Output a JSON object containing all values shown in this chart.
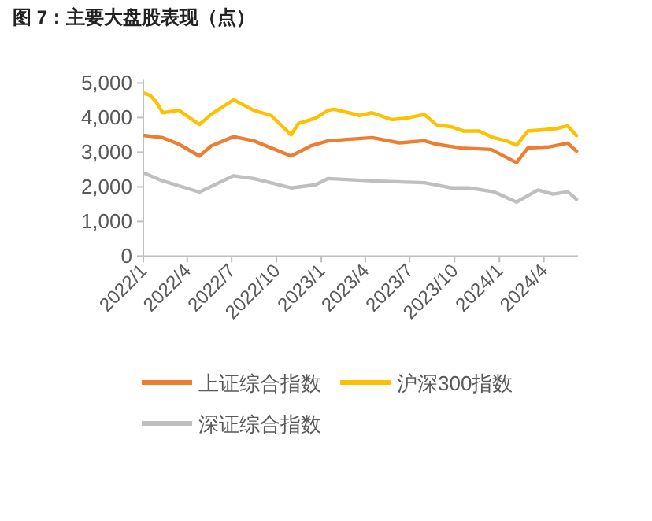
{
  "chart_data": {
    "type": "line",
    "title": "图 7：主要大盘股表现（点）",
    "xlim": [
      "2022-01-01",
      "2024-06-10"
    ],
    "xticks": [
      {
        "value": "2022-01-01",
        "label": "2022/1"
      },
      {
        "value": "2022-04-01",
        "label": "2022/4"
      },
      {
        "value": "2022-07-01",
        "label": "2022/7"
      },
      {
        "value": "2022-10-01",
        "label": "2022/10"
      },
      {
        "value": "2023-01-01",
        "label": "2023/1"
      },
      {
        "value": "2023-04-01",
        "label": "2023/4"
      },
      {
        "value": "2023-07-01",
        "label": "2023/7"
      },
      {
        "value": "2023-10-01",
        "label": "2023/10"
      },
      {
        "value": "2024-01-01",
        "label": "2024/1"
      },
      {
        "value": "2024-04-01",
        "label": "2024/4"
      }
    ],
    "ylim": [
      0,
      5000
    ],
    "yticks": [
      {
        "value": 0,
        "label": "0"
      },
      {
        "value": 1000,
        "label": "1,000"
      },
      {
        "value": 2000,
        "label": "2,000"
      },
      {
        "value": 3000,
        "label": "3,000"
      },
      {
        "value": 4000,
        "label": "4,000"
      },
      {
        "value": 5000,
        "label": "5,000"
      }
    ],
    "grid": false,
    "legend": "bottom",
    "marker": "none",
    "series": [
      {
        "name": "上证综合指数",
        "color": "#ed7d31",
        "x": [
          "2022-01-04",
          "2022-02-10",
          "2022-03-15",
          "2022-04-26",
          "2022-05-20",
          "2022-07-05",
          "2022-08-15",
          "2022-10-31",
          "2022-12-10",
          "2023-01-15",
          "2023-04-15",
          "2023-06-10",
          "2023-07-31",
          "2023-08-25",
          "2023-10-15",
          "2023-12-15",
          "2024-02-05",
          "2024-02-28",
          "2024-04-10",
          "2024-05-20",
          "2024-06-07"
        ],
        "values": [
          3480,
          3420,
          3230,
          2890,
          3180,
          3450,
          3330,
          2890,
          3180,
          3330,
          3420,
          3270,
          3330,
          3230,
          3120,
          3080,
          2700,
          3120,
          3150,
          3260,
          3030
        ]
      },
      {
        "name": "沪深300指数",
        "color": "#ffc000",
        "x": [
          "2022-01-04",
          "2022-01-15",
          "2022-01-28",
          "2022-02-10",
          "2022-03-15",
          "2022-04-26",
          "2022-05-20",
          "2022-07-05",
          "2022-08-15",
          "2022-09-20",
          "2022-10-31",
          "2022-11-15",
          "2022-12-20",
          "2023-01-15",
          "2023-01-28",
          "2023-02-25",
          "2023-03-20",
          "2023-04-15",
          "2023-05-25",
          "2023-06-25",
          "2023-07-31",
          "2023-08-25",
          "2023-09-25",
          "2023-10-20",
          "2023-11-20",
          "2023-12-20",
          "2024-01-15",
          "2024-02-05",
          "2024-02-28",
          "2024-03-25",
          "2024-04-25",
          "2024-05-20",
          "2024-06-07"
        ],
        "values": [
          4700,
          4640,
          4440,
          4140,
          4210,
          3800,
          4090,
          4515,
          4210,
          4060,
          3500,
          3830,
          3985,
          4210,
          4240,
          4140,
          4060,
          4140,
          3940,
          3985,
          4090,
          3790,
          3730,
          3610,
          3610,
          3420,
          3330,
          3200,
          3610,
          3640,
          3680,
          3760,
          3480
        ]
      },
      {
        "name": "深证综合指数",
        "color": "#bfbfbf",
        "x": [
          "2022-01-04",
          "2022-02-10",
          "2022-04-26",
          "2022-07-05",
          "2022-08-15",
          "2022-10-31",
          "2022-12-20",
          "2023-01-15",
          "2023-04-15",
          "2023-07-31",
          "2023-09-25",
          "2023-10-30",
          "2023-12-20",
          "2024-02-05",
          "2024-03-20",
          "2024-04-20",
          "2024-05-20",
          "2024-06-07"
        ],
        "values": [
          2390,
          2170,
          1850,
          2320,
          2240,
          1970,
          2060,
          2240,
          2170,
          2120,
          1970,
          1970,
          1860,
          1560,
          1910,
          1790,
          1860,
          1640
        ]
      }
    ]
  }
}
